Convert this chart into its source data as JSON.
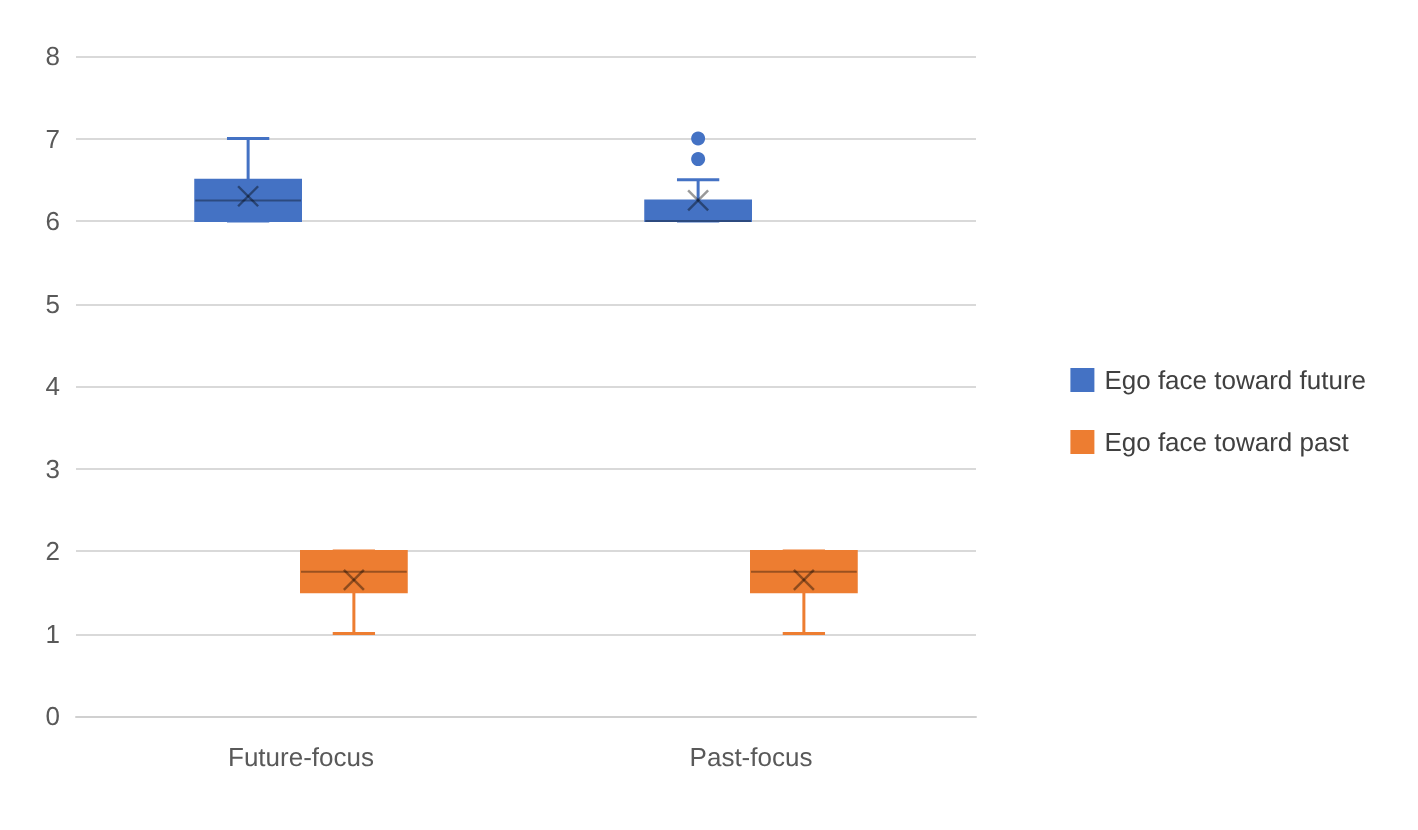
{
  "chart_data": {
    "type": "box",
    "categories": [
      "Future-focus",
      "Past-focus"
    ],
    "ylim": [
      0,
      8
    ],
    "yticks": [
      0,
      1,
      2,
      3,
      4,
      5,
      6,
      7,
      8
    ],
    "grid": "y",
    "legend": "right",
    "series": [
      {
        "name": "Ego face toward future",
        "color": "#4472c4",
        "boxes": [
          {
            "low": 6,
            "q1": 6,
            "median": 6.25,
            "q3": 6.5,
            "high": 7,
            "mean": 6.3
          },
          {
            "low": 6,
            "q1": 6,
            "median": 6,
            "q3": 6.25,
            "high": 6.5,
            "mean": 6.25,
            "outliers": [
              6.75,
              7
            ]
          }
        ]
      },
      {
        "name": "Ego face toward past",
        "color": "#ed7d31",
        "boxes": [
          {
            "low": 1,
            "q1": 1.5,
            "median": 1.75,
            "q3": 2,
            "high": 2,
            "mean": 1.65
          },
          {
            "low": 1,
            "q1": 1.5,
            "median": 1.75,
            "q3": 2,
            "high": 2,
            "mean": 1.65
          }
        ]
      }
    ]
  }
}
